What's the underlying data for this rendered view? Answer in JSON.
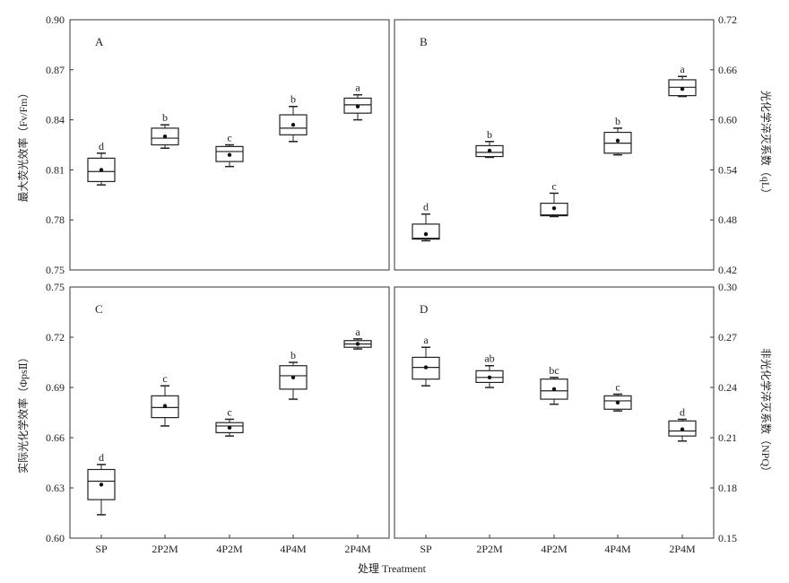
{
  "xlabel": "处理 Treatment",
  "chart_data": [
    {
      "type": "boxplot",
      "panel": "A",
      "ylabel": "最大荧光效率（Fv/Fm）",
      "ylabel_side": "left",
      "ylim": [
        0.75,
        0.9
      ],
      "yticks": [
        "0.75",
        "0.78",
        "0.81",
        "0.84",
        "0.87",
        "0.90"
      ],
      "categories": [
        "SP",
        "2P2M",
        "4P2M",
        "4P4M",
        "2P4M"
      ],
      "boxes": [
        {
          "min": 0.801,
          "q1": 0.803,
          "median": 0.809,
          "q3": 0.817,
          "max": 0.82,
          "mean": 0.81,
          "sig": "d"
        },
        {
          "min": 0.823,
          "q1": 0.825,
          "median": 0.829,
          "q3": 0.835,
          "max": 0.837,
          "mean": 0.83,
          "sig": "b"
        },
        {
          "min": 0.812,
          "q1": 0.815,
          "median": 0.821,
          "q3": 0.824,
          "max": 0.825,
          "mean": 0.819,
          "sig": "c"
        },
        {
          "min": 0.827,
          "q1": 0.831,
          "median": 0.835,
          "q3": 0.843,
          "max": 0.848,
          "mean": 0.837,
          "sig": "b"
        },
        {
          "min": 0.84,
          "q1": 0.844,
          "median": 0.849,
          "q3": 0.853,
          "max": 0.855,
          "mean": 0.848,
          "sig": "a"
        }
      ]
    },
    {
      "type": "boxplot",
      "panel": "B",
      "ylabel": "光化学淬灭系数（qL）",
      "ylabel_side": "right",
      "ylim": [
        0.42,
        0.72
      ],
      "yticks": [
        "0.42",
        "0.48",
        "0.54",
        "0.60",
        "0.66",
        "0.72"
      ],
      "categories": [
        "SP",
        "2P2M",
        "4P2M",
        "4P4M",
        "2P4M"
      ],
      "boxes": [
        {
          "min": 0.455,
          "q1": 0.457,
          "median": 0.458,
          "q3": 0.475,
          "max": 0.487,
          "mean": 0.463,
          "sig": "d"
        },
        {
          "min": 0.555,
          "q1": 0.556,
          "median": 0.561,
          "q3": 0.569,
          "max": 0.574,
          "mean": 0.563,
          "sig": "b"
        },
        {
          "min": 0.484,
          "q1": 0.485,
          "median": 0.486,
          "q3": 0.5,
          "max": 0.512,
          "mean": 0.494,
          "sig": "c"
        },
        {
          "min": 0.558,
          "q1": 0.56,
          "median": 0.572,
          "q3": 0.585,
          "max": 0.59,
          "mean": 0.575,
          "sig": "b"
        },
        {
          "min": 0.628,
          "q1": 0.629,
          "median": 0.639,
          "q3": 0.648,
          "max": 0.652,
          "mean": 0.637,
          "sig": "a"
        }
      ]
    },
    {
      "type": "boxplot",
      "panel": "C",
      "ylabel": "实际光化学效率（ΦpsⅡ）",
      "ylabel_side": "left",
      "ylim": [
        0.6,
        0.75
      ],
      "yticks": [
        "0.60",
        "0.63",
        "0.66",
        "0.69",
        "0.72",
        "0.75"
      ],
      "categories": [
        "SP",
        "2P2M",
        "4P2M",
        "4P4M",
        "2P4M"
      ],
      "boxes": [
        {
          "min": 0.614,
          "q1": 0.623,
          "median": 0.634,
          "q3": 0.641,
          "max": 0.644,
          "mean": 0.632,
          "sig": "d"
        },
        {
          "min": 0.667,
          "q1": 0.672,
          "median": 0.678,
          "q3": 0.685,
          "max": 0.691,
          "mean": 0.679,
          "sig": "c"
        },
        {
          "min": 0.661,
          "q1": 0.663,
          "median": 0.667,
          "q3": 0.669,
          "max": 0.671,
          "mean": 0.666,
          "sig": "c"
        },
        {
          "min": 0.683,
          "q1": 0.689,
          "median": 0.697,
          "q3": 0.703,
          "max": 0.705,
          "mean": 0.696,
          "sig": "b"
        },
        {
          "min": 0.713,
          "q1": 0.714,
          "median": 0.716,
          "q3": 0.718,
          "max": 0.719,
          "mean": 0.716,
          "sig": "a"
        }
      ]
    },
    {
      "type": "boxplot",
      "panel": "D",
      "ylabel": "非光化学淬灭系数（NPQ）",
      "ylabel_side": "right",
      "ylim": [
        0.15,
        0.3
      ],
      "yticks": [
        "0.15",
        "0.18",
        "0.21",
        "0.24",
        "0.27",
        "0.30"
      ],
      "categories": [
        "SP",
        "2P2M",
        "4P2M",
        "4P4M",
        "2P4M"
      ],
      "boxes": [
        {
          "min": 0.241,
          "q1": 0.245,
          "median": 0.252,
          "q3": 0.258,
          "max": 0.264,
          "mean": 0.252,
          "sig": "a"
        },
        {
          "min": 0.24,
          "q1": 0.243,
          "median": 0.246,
          "q3": 0.25,
          "max": 0.253,
          "mean": 0.246,
          "sig": "ab"
        },
        {
          "min": 0.23,
          "q1": 0.233,
          "median": 0.238,
          "q3": 0.245,
          "max": 0.246,
          "mean": 0.239,
          "sig": "bc"
        },
        {
          "min": 0.226,
          "q1": 0.227,
          "median": 0.232,
          "q3": 0.235,
          "max": 0.236,
          "mean": 0.231,
          "sig": "c"
        },
        {
          "min": 0.208,
          "q1": 0.211,
          "median": 0.214,
          "q3": 0.22,
          "max": 0.221,
          "mean": 0.215,
          "sig": "d"
        }
      ]
    }
  ]
}
